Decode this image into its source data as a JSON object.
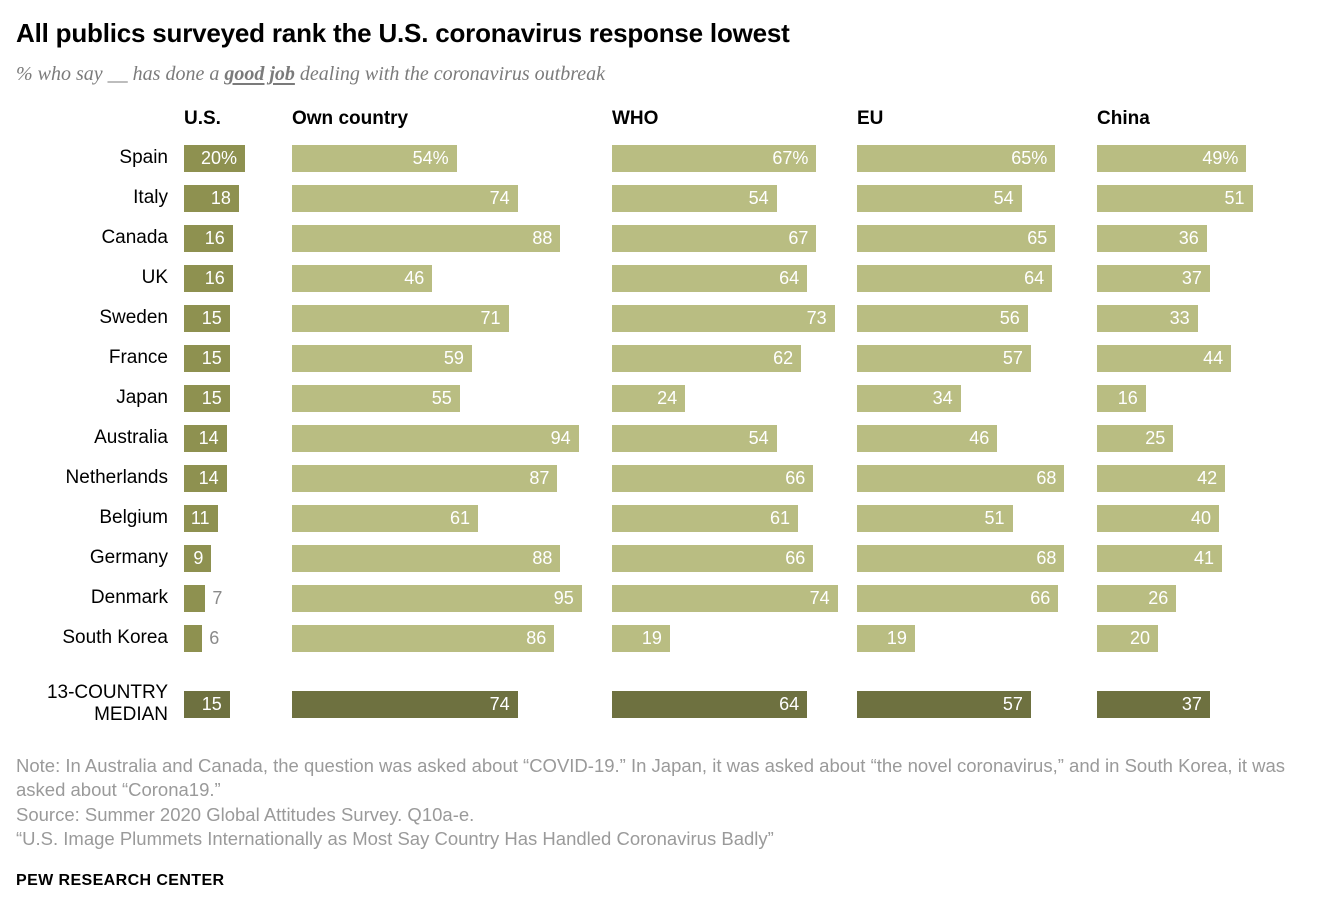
{
  "header": {
    "title": "All publics surveyed rank the U.S. coronavirus response lowest",
    "subtitle_prefix": "% who say __ has done a ",
    "subtitle_emphasis": "good job",
    "subtitle_suffix": " dealing with the coronavirus outbreak"
  },
  "chart_data": {
    "type": "bar",
    "orientation": "horizontal",
    "unit": "%",
    "first_row_percent_suffix": true,
    "columns": [
      "U.S.",
      "Own country",
      "WHO",
      "EU",
      "China"
    ],
    "rows": [
      {
        "label": "Spain",
        "values": [
          20,
          54,
          67,
          65,
          49
        ]
      },
      {
        "label": "Italy",
        "values": [
          18,
          74,
          54,
          54,
          51
        ]
      },
      {
        "label": "Canada",
        "values": [
          16,
          88,
          67,
          65,
          36
        ]
      },
      {
        "label": "UK",
        "values": [
          16,
          46,
          64,
          64,
          37
        ]
      },
      {
        "label": "Sweden",
        "values": [
          15,
          71,
          73,
          56,
          33
        ]
      },
      {
        "label": "France",
        "values": [
          15,
          59,
          62,
          57,
          44
        ]
      },
      {
        "label": "Japan",
        "values": [
          15,
          55,
          24,
          34,
          16
        ]
      },
      {
        "label": "Australia",
        "values": [
          14,
          94,
          54,
          46,
          25
        ]
      },
      {
        "label": "Netherlands",
        "values": [
          14,
          87,
          66,
          68,
          42
        ]
      },
      {
        "label": "Belgium",
        "values": [
          11,
          61,
          61,
          51,
          40
        ]
      },
      {
        "label": "Germany",
        "values": [
          9,
          88,
          66,
          68,
          41
        ]
      },
      {
        "label": "Denmark",
        "values": [
          7,
          95,
          74,
          66,
          26
        ]
      },
      {
        "label": "South Korea",
        "values": [
          6,
          86,
          19,
          19,
          20
        ]
      }
    ],
    "median_row": {
      "label": "13-COUNTRY MEDIAN",
      "values": [
        15,
        74,
        64,
        57,
        37
      ]
    },
    "colors": {
      "bar_light": "#b9bd82",
      "bar_us": "#8e9150",
      "bar_median": "#6e7140",
      "value_inside": "#ffffff",
      "value_outside": "#8a8a8a"
    },
    "legend_position": "none",
    "grid": false
  },
  "footer": {
    "note": "Note: In Australia and Canada, the question was asked about “COVID-19.” In Japan, it was asked about “the novel coronavirus,” and in South Korea, it was asked about “Corona19.”",
    "source": "Source: Summer 2020 Global Attitudes Survey. Q10a-e.",
    "report": "“U.S. Image Plummets Internationally as Most Say Country Has Handled Coronavirus Badly”",
    "brand": "PEW RESEARCH CENTER"
  }
}
